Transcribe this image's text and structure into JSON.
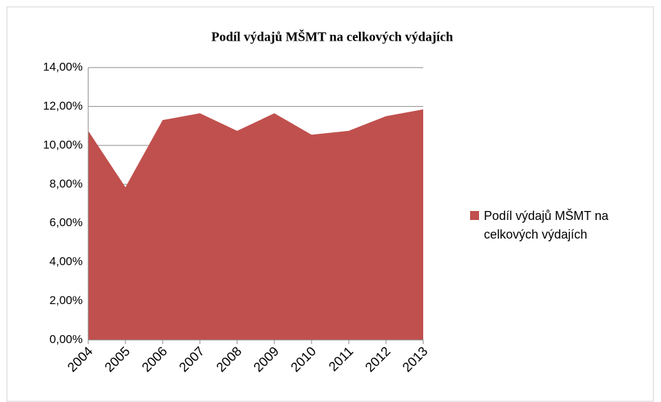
{
  "chart_data": {
    "type": "area",
    "title": "Podíl výdajů MŠMT na celkových výdajích",
    "categories": [
      "2004",
      "2005",
      "2006",
      "2007",
      "2008",
      "2009",
      "2010",
      "2011",
      "2012",
      "2013"
    ],
    "series": [
      {
        "name": "Podíl výdajů MŠMT na celkových výdajích",
        "color": "#c0504d",
        "values": [
          10.75,
          7.85,
          11.3,
          11.65,
          10.75,
          11.65,
          10.55,
          10.75,
          11.5,
          11.85
        ]
      }
    ],
    "ylim": [
      0,
      14
    ],
    "yticks": [
      {
        "value": 0,
        "label": "0,00%"
      },
      {
        "value": 2,
        "label": "2,00%"
      },
      {
        "value": 4,
        "label": "4,00%"
      },
      {
        "value": 6,
        "label": "6,00%"
      },
      {
        "value": 8,
        "label": "8,00%"
      },
      {
        "value": 10,
        "label": "10,00%"
      },
      {
        "value": 12,
        "label": "12,00%"
      },
      {
        "value": 14,
        "label": "14,00%"
      }
    ],
    "grid": true,
    "legend": "right"
  }
}
